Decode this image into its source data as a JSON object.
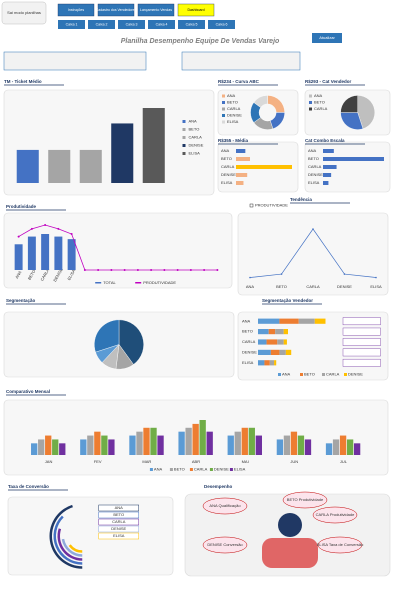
{
  "header": {
    "logo": "Sai modo planilhas",
    "buttons": [
      "Instruções",
      "Cadastro dos Vendedores",
      "Lançamento Vendas",
      "Dashboard"
    ],
    "tabs": [
      "Caixa 1",
      "Caixa 2",
      "Caixa 3",
      "Caixa 4",
      "Caixa 5",
      "Caixa 6"
    ],
    "title": "Planilha Desempenho Equipe De Vendas Varejo",
    "refresh": "Atualizar"
  },
  "chart_data": [
    {
      "type": "bar",
      "title": "TM - Ticket Médio",
      "categories": [
        "ANA",
        "BETO",
        "CARLA",
        "DENISE",
        "ELISA"
      ],
      "values": [
        30,
        30,
        30,
        54,
        68
      ],
      "colors": [
        "#4472c4",
        "#a5a5a5",
        "#a5a5a5",
        "#1f3864",
        "#595959"
      ]
    },
    {
      "type": "donut",
      "title": "R$234 - Curva ABC",
      "categories": [
        "ANA",
        "BETO",
        "CARLA",
        "DENISE",
        "ELISA"
      ],
      "values": [
        25,
        20,
        20,
        20,
        15
      ],
      "colors": [
        "#f4b183",
        "#4472c4",
        "#a5a5a5",
        "#2e75b6",
        "#d9d9d9"
      ],
      "legend": true
    },
    {
      "type": "pie",
      "title": "R$293 - Cat Vendedor",
      "categories": [
        "ANA",
        "BETO",
        "CARLA"
      ],
      "values": [
        45,
        30,
        25
      ],
      "colors": [
        "#bfbfbf",
        "#4472c4",
        "#404040"
      ],
      "legend": true
    },
    {
      "type": "hbar",
      "title": "R$355 - Média",
      "categories": [
        "ANA",
        "BETO",
        "CARLA",
        "DENISE",
        "ELISA"
      ],
      "values": [
        10,
        15,
        60,
        12,
        8
      ],
      "colors": [
        "#4472c4",
        "#f4b183",
        "#ffc000",
        "#f4b183",
        "#f4b183"
      ]
    },
    {
      "type": "hbar",
      "title": "Cat Combo Escala",
      "categories": [
        "ANA",
        "BETO",
        "CARLA",
        "DENISE",
        "ELISA"
      ],
      "values": [
        8,
        45,
        10,
        6,
        4
      ],
      "colors": [
        "#4472c4",
        "#4472c4",
        "#4472c4",
        "#4472c4",
        "#4472c4"
      ]
    },
    {
      "type": "combo",
      "title": "Produtividade",
      "categories": [
        "ANA",
        "BETO",
        "CARLA",
        "DENISE",
        "ELISA",
        null,
        null,
        null,
        null,
        null,
        null,
        null,
        null,
        null,
        null,
        null
      ],
      "series": [
        {
          "name": "TOTAL",
          "color": "#4472c4",
          "values": [
            20,
            26,
            28,
            26,
            24,
            null,
            null,
            null,
            null,
            null,
            null,
            null,
            null,
            null,
            null,
            null
          ]
        },
        {
          "name": "PRODUTIVIDADE",
          "color": "#c000c0",
          "values": [
            26,
            32,
            35,
            32,
            28,
            0,
            0,
            0,
            0,
            0,
            0,
            0,
            0,
            0,
            0,
            0
          ]
        }
      ]
    },
    {
      "type": "line",
      "title": "Tendência",
      "categories": [
        "ANA",
        "BETO",
        "CARLA",
        "DENISE",
        "ELISA"
      ],
      "series": [
        {
          "name": "PRODUTIVIDADE",
          "color": "#4472c4",
          "values": [
            2,
            4,
            30,
            4,
            2
          ]
        }
      ]
    },
    {
      "type": "pie",
      "title": "Segmentação",
      "categories": [
        "ANA",
        "BETO",
        "CARLA",
        "DENISE",
        "ELISA"
      ],
      "values": [
        40,
        12,
        10,
        8,
        30
      ],
      "colors": [
        "#1f4e79",
        "#a5a5a5",
        "#bfbfbf",
        "#5b9bd5",
        "#2e75b6"
      ]
    },
    {
      "type": "stack",
      "title": "Segmentação Vendedor",
      "categories": [
        "ANA",
        "BETO",
        "CARLA",
        "DENISE",
        "ELISA"
      ],
      "series": [
        {
          "name": "ANA",
          "color": "#5b9bd5",
          "values": [
            20,
            10,
            8,
            12,
            6
          ]
        },
        {
          "name": "BETO",
          "color": "#ed7d31",
          "values": [
            18,
            6,
            10,
            8,
            5
          ]
        },
        {
          "name": "CARLA",
          "color": "#a5a5a5",
          "values": [
            15,
            8,
            6,
            6,
            4
          ]
        },
        {
          "name": "DENISE",
          "color": "#ffc000",
          "values": [
            10,
            4,
            3,
            5,
            2
          ]
        }
      ]
    },
    {
      "type": "group",
      "title": "Comparativo Mensal",
      "categories": [
        "JAN",
        "FEV",
        "MAR",
        "ABR",
        "MAI",
        "JUN",
        "JUL"
      ],
      "series": [
        {
          "name": "ANA",
          "color": "#5b9bd5",
          "values": [
            3,
            4,
            5,
            6,
            5,
            4,
            3
          ]
        },
        {
          "name": "BETO",
          "color": "#a5a5a5",
          "values": [
            4,
            5,
            6,
            7,
            6,
            5,
            4
          ]
        },
        {
          "name": "CARLA",
          "color": "#ed7d31",
          "values": [
            5,
            6,
            7,
            8,
            7,
            6,
            5
          ]
        },
        {
          "name": "DENISE",
          "color": "#70ad47",
          "values": [
            4,
            5,
            7,
            9,
            7,
            5,
            4
          ]
        },
        {
          "name": "ELISA",
          "color": "#7030a0",
          "values": [
            3,
            4,
            5,
            6,
            5,
            4,
            3
          ]
        }
      ]
    },
    {
      "type": "radial",
      "title": "Taxa de Conversão",
      "categories": [
        "ANA",
        "BETO",
        "CARLA",
        "DENISE",
        "ELISA"
      ],
      "values": [
        90,
        75,
        60,
        45,
        30
      ],
      "colors": [
        "#1f3864",
        "#4472c4",
        "#7030a0",
        "#8faadc",
        "#ffc000"
      ]
    }
  ],
  "performance": {
    "title": "Desempenho",
    "bubbles": [
      "ANA Qualificação",
      "BETO Produtividade",
      "CARLA Produtividade",
      "DENISE Conversão",
      "ELISA Taxa de Conversão"
    ]
  }
}
